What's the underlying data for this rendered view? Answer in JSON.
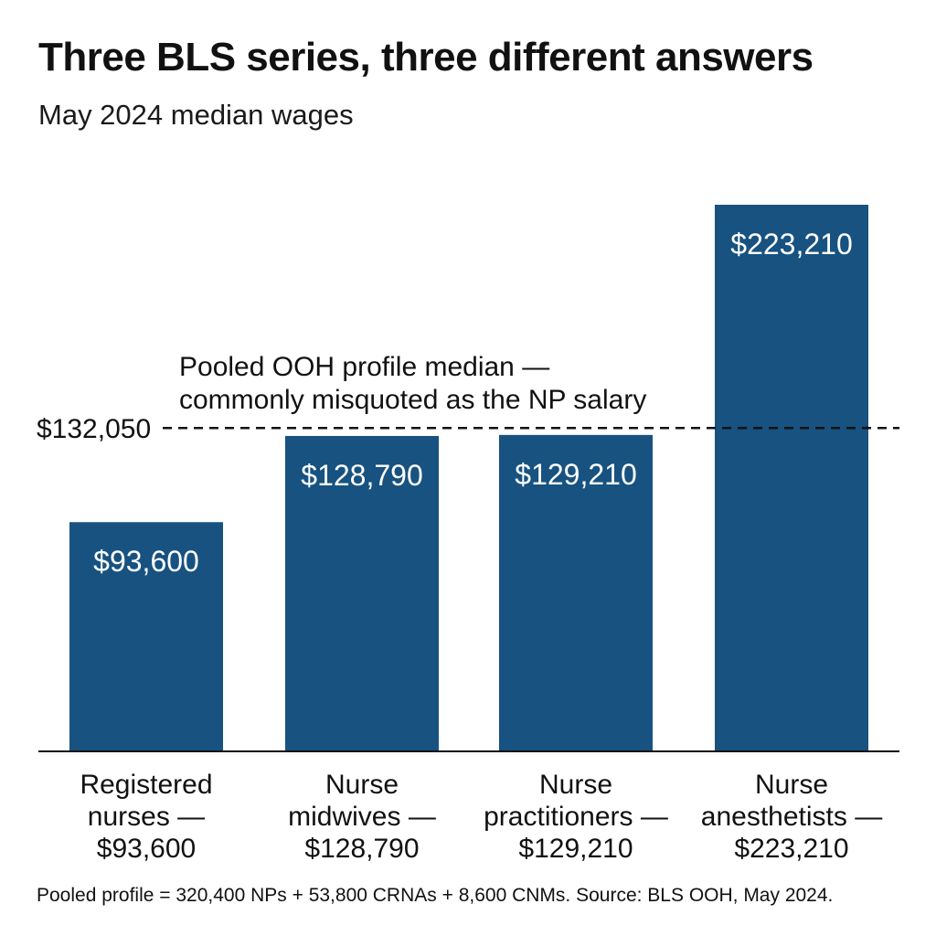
{
  "title": "Three BLS series, three different answers",
  "subtitle": "May 2024 median wages",
  "footnote": "Pooled profile = 320,400 NPs + 53,800 CRNAs + 8,600 CNMs. Source: BLS OOH, May 2024.",
  "colors": {
    "bar": "#175280",
    "bar_text": "#ffffff",
    "text": "#111111",
    "reference_line": "#111111"
  },
  "chart_data": {
    "type": "bar",
    "categories": [
      "Registered nurses — $93,600",
      "Nurse midwives — $128,790",
      "Nurse practitioners — $129,210",
      "Nurse anesthetists — $223,210"
    ],
    "category_label_lines": [
      [
        "Registered",
        "nurses —",
        "$93,600"
      ],
      [
        "Nurse",
        "midwives —",
        "$128,790"
      ],
      [
        "Nurse",
        "practitioners —",
        "$129,210"
      ],
      [
        "Nurse",
        "anesthetists —",
        "$223,210"
      ]
    ],
    "values": [
      93600,
      128790,
      129210,
      223210
    ],
    "value_labels": [
      "$93,600",
      "$128,790",
      "$129,210",
      "$223,210"
    ],
    "ylim": [
      0,
      240000
    ],
    "grid": false,
    "legend": "none",
    "reference_line": {
      "value": 132050,
      "label": "$132,050",
      "annotation_lines": [
        "Pooled OOH profile median —",
        "commonly misquoted as the NP salary"
      ],
      "style": "dashed"
    }
  }
}
